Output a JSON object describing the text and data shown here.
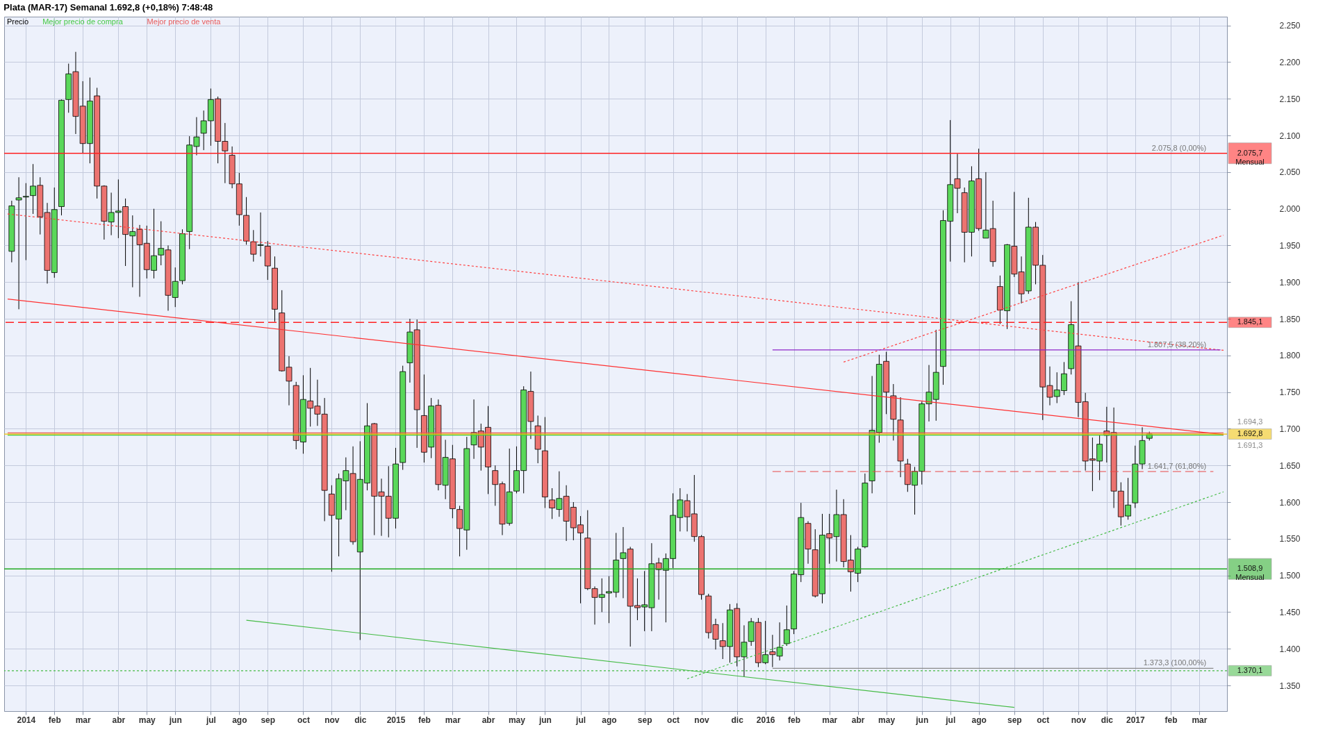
{
  "chart_data": {
    "type": "candlestick",
    "title": "Plata (MAR-17)   Semanal   1.692,8 (+0,18%)   7:48:48",
    "xlim": [
      "2013-12-19",
      "2017-03-30"
    ],
    "ylim": [
      1315,
      2262
    ],
    "xticks": [
      {
        "value": "2014-01-06",
        "label": "2014"
      },
      {
        "value": "2014-02-03",
        "label": "feb"
      },
      {
        "value": "2014-03-03",
        "label": "mar"
      },
      {
        "value": "2014-04-07",
        "label": "abr"
      },
      {
        "value": "2014-05-05",
        "label": "may"
      },
      {
        "value": "2014-06-02",
        "label": "jun"
      },
      {
        "value": "2014-07-07",
        "label": "jul"
      },
      {
        "value": "2014-08-04",
        "label": "ago"
      },
      {
        "value": "2014-09-01",
        "label": "sep"
      },
      {
        "value": "2014-10-06",
        "label": "oct"
      },
      {
        "value": "2014-11-03",
        "label": "nov"
      },
      {
        "value": "2014-12-01",
        "label": "dic"
      },
      {
        "value": "2015-01-05",
        "label": "2015"
      },
      {
        "value": "2015-02-02",
        "label": "feb"
      },
      {
        "value": "2015-03-02",
        "label": "mar"
      },
      {
        "value": "2015-04-06",
        "label": "abr"
      },
      {
        "value": "2015-05-04",
        "label": "may"
      },
      {
        "value": "2015-06-01",
        "label": "jun"
      },
      {
        "value": "2015-07-06",
        "label": "jul"
      },
      {
        "value": "2015-08-03",
        "label": "ago"
      },
      {
        "value": "2015-09-07",
        "label": "sep"
      },
      {
        "value": "2015-10-05",
        "label": "oct"
      },
      {
        "value": "2015-11-02",
        "label": "nov"
      },
      {
        "value": "2015-12-07",
        "label": "dic"
      },
      {
        "value": "2016-01-04",
        "label": "2016"
      },
      {
        "value": "2016-02-01",
        "label": "feb"
      },
      {
        "value": "2016-03-07",
        "label": "mar"
      },
      {
        "value": "2016-04-04",
        "label": "abr"
      },
      {
        "value": "2016-05-02",
        "label": "may"
      },
      {
        "value": "2016-06-06",
        "label": "jun"
      },
      {
        "value": "2016-07-04",
        "label": "jul"
      },
      {
        "value": "2016-08-01",
        "label": "ago"
      },
      {
        "value": "2016-09-05",
        "label": "sep"
      },
      {
        "value": "2016-10-03",
        "label": "oct"
      },
      {
        "value": "2016-11-07",
        "label": "nov"
      },
      {
        "value": "2016-12-05",
        "label": "dic"
      },
      {
        "value": "2017-01-02",
        "label": "2017"
      },
      {
        "value": "2017-02-06",
        "label": "feb"
      },
      {
        "value": "2017-03-06",
        "label": "mar"
      }
    ],
    "yticks": [
      {
        "value": 1350,
        "label": "1.350"
      },
      {
        "value": 1400,
        "label": "1.400"
      },
      {
        "value": 1450,
        "label": "1.450"
      },
      {
        "value": 1500,
        "label": "1.500"
      },
      {
        "value": 1550,
        "label": "1.550"
      },
      {
        "value": 1600,
        "label": "1.600"
      },
      {
        "value": 1650,
        "label": "1.650"
      },
      {
        "value": 1700,
        "label": "1.700"
      },
      {
        "value": 1750,
        "label": "1.750"
      },
      {
        "value": 1800,
        "label": "1.800"
      },
      {
        "value": 1850,
        "label": "1.850"
      },
      {
        "value": 1900,
        "label": "1.900"
      },
      {
        "value": 1950,
        "label": "1.950"
      },
      {
        "value": 2000,
        "label": "2.000"
      },
      {
        "value": 2050,
        "label": "2.050"
      },
      {
        "value": 2100,
        "label": "2.100"
      },
      {
        "value": 2150,
        "label": "2.150"
      },
      {
        "value": 2200,
        "label": "2.200"
      },
      {
        "value": 2250,
        "label": "2.250"
      }
    ],
    "grid": true,
    "legend": "top left",
    "series": [
      {
        "name": "Precio",
        "x": [
          "2013-12-23",
          "2013-12-30",
          "2014-01-06",
          "2014-01-13",
          "2014-01-20",
          "2014-01-27",
          "2014-02-03",
          "2014-02-10",
          "2014-02-17",
          "2014-02-24",
          "2014-03-03",
          "2014-03-10",
          "2014-03-17",
          "2014-03-24",
          "2014-03-31",
          "2014-04-07",
          "2014-04-14",
          "2014-04-21",
          "2014-04-28",
          "2014-05-05",
          "2014-05-12",
          "2014-05-19",
          "2014-05-26",
          "2014-06-02",
          "2014-06-09",
          "2014-06-16",
          "2014-06-23",
          "2014-06-30",
          "2014-07-07",
          "2014-07-14",
          "2014-07-21",
          "2014-07-28",
          "2014-08-04",
          "2014-08-11",
          "2014-08-18",
          "2014-08-25",
          "2014-09-01",
          "2014-09-08",
          "2014-09-15",
          "2014-09-22",
          "2014-09-29",
          "2014-10-06",
          "2014-10-13",
          "2014-10-20",
          "2014-10-27",
          "2014-11-03",
          "2014-11-10",
          "2014-11-17",
          "2014-11-24",
          "2014-12-01",
          "2014-12-08",
          "2014-12-15",
          "2014-12-22",
          "2014-12-29",
          "2015-01-05",
          "2015-01-12",
          "2015-01-19",
          "2015-01-26",
          "2015-02-02",
          "2015-02-09",
          "2015-02-16",
          "2015-02-23",
          "2015-03-02",
          "2015-03-09",
          "2015-03-16",
          "2015-03-23",
          "2015-03-30",
          "2015-04-06",
          "2015-04-13",
          "2015-04-20",
          "2015-04-27",
          "2015-05-04",
          "2015-05-11",
          "2015-05-18",
          "2015-05-25",
          "2015-06-01",
          "2015-06-08",
          "2015-06-15",
          "2015-06-22",
          "2015-06-29",
          "2015-07-06",
          "2015-07-13",
          "2015-07-20",
          "2015-07-27",
          "2015-08-03",
          "2015-08-10",
          "2015-08-17",
          "2015-08-24",
          "2015-08-31",
          "2015-09-07",
          "2015-09-14",
          "2015-09-21",
          "2015-09-28",
          "2015-10-05",
          "2015-10-12",
          "2015-10-19",
          "2015-10-26",
          "2015-11-02",
          "2015-11-09",
          "2015-11-16",
          "2015-11-23",
          "2015-11-30",
          "2015-12-07",
          "2015-12-14",
          "2015-12-21",
          "2015-12-28",
          "2016-01-04",
          "2016-01-11",
          "2016-01-18",
          "2016-01-25",
          "2016-02-01",
          "2016-02-08",
          "2016-02-15",
          "2016-02-22",
          "2016-02-29",
          "2016-03-07",
          "2016-03-14",
          "2016-03-21",
          "2016-03-28",
          "2016-04-04",
          "2016-04-11",
          "2016-04-18",
          "2016-04-25",
          "2016-05-02",
          "2016-05-09",
          "2016-05-16",
          "2016-05-23",
          "2016-05-30",
          "2016-06-06",
          "2016-06-13",
          "2016-06-20",
          "2016-06-27",
          "2016-07-04",
          "2016-07-11",
          "2016-07-18",
          "2016-07-25",
          "2016-08-01",
          "2016-08-08",
          "2016-08-15",
          "2016-08-22",
          "2016-08-29",
          "2016-09-05",
          "2016-09-12",
          "2016-09-19",
          "2016-09-26",
          "2016-10-03",
          "2016-10-10",
          "2016-10-17",
          "2016-10-24",
          "2016-10-31",
          "2016-11-07",
          "2016-11-14",
          "2016-11-21",
          "2016-11-28",
          "2016-12-05",
          "2016-12-12",
          "2016-12-19",
          "2016-12-26",
          "2017-01-02",
          "2017-01-09",
          "2017-01-16"
        ],
        "ohlc": [
          [
            1942,
            2011,
            1927,
            2004
          ],
          [
            2012,
            2043,
            1863,
            2015
          ],
          [
            2016,
            2035,
            1930,
            2017
          ],
          [
            2018,
            2061,
            1993,
            2031
          ],
          [
            2032,
            2043,
            1965,
            1989
          ],
          [
            1995,
            2008,
            1898,
            1916
          ],
          [
            1913,
            2029,
            1906,
            1999
          ],
          [
            2003,
            2149,
            1991,
            2148
          ],
          [
            2149,
            2198,
            2131,
            2184
          ],
          [
            2187,
            2214,
            2102,
            2126
          ],
          [
            2140,
            2174,
            2076,
            2089
          ],
          [
            2089,
            2179,
            2062,
            2147
          ],
          [
            2154,
            2165,
            2014,
            2031
          ],
          [
            2031,
            2032,
            1958,
            1983
          ],
          [
            1982,
            2022,
            1964,
            1995
          ],
          [
            1995,
            2040,
            1960,
            1997
          ],
          [
            2003,
            2014,
            1922,
            1965
          ],
          [
            1963,
            1991,
            1893,
            1969
          ],
          [
            1972,
            1978,
            1880,
            1951
          ],
          [
            1953,
            1977,
            1905,
            1917
          ],
          [
            1916,
            2000,
            1905,
            1936
          ],
          [
            1937,
            1983,
            1923,
            1946
          ],
          [
            1944,
            1950,
            1861,
            1882
          ],
          [
            1879,
            1920,
            1866,
            1901
          ],
          [
            1902,
            1972,
            1897,
            1966
          ],
          [
            1969,
            2099,
            1945,
            2087
          ],
          [
            2085,
            2125,
            2073,
            2098
          ],
          [
            2103,
            2134,
            2080,
            2120
          ],
          [
            2120,
            2164,
            2086,
            2149
          ],
          [
            2150,
            2153,
            2062,
            2092
          ],
          [
            2092,
            2117,
            2035,
            2079
          ],
          [
            2073,
            2085,
            2028,
            2034
          ],
          [
            2034,
            2049,
            1977,
            1992
          ],
          [
            1991,
            2016,
            1951,
            1956
          ],
          [
            1955,
            1971,
            1928,
            1938
          ],
          [
            1950,
            1995,
            1935,
            1951
          ],
          [
            1949,
            1956,
            1903,
            1922
          ],
          [
            1919,
            1935,
            1846,
            1863
          ],
          [
            1858,
            1889,
            1778,
            1779
          ],
          [
            1784,
            1799,
            1732,
            1765
          ],
          [
            1759,
            1764,
            1672,
            1684
          ],
          [
            1682,
            1773,
            1666,
            1740
          ],
          [
            1738,
            1783,
            1703,
            1728
          ],
          [
            1731,
            1767,
            1704,
            1720
          ],
          [
            1720,
            1742,
            1574,
            1616
          ],
          [
            1611,
            1623,
            1505,
            1582
          ],
          [
            1577,
            1639,
            1526,
            1632
          ],
          [
            1629,
            1661,
            1589,
            1643
          ],
          [
            1639,
            1676,
            1542,
            1546
          ],
          [
            1532,
            1683,
            1412,
            1631
          ],
          [
            1626,
            1735,
            1616,
            1704
          ],
          [
            1707,
            1708,
            1555,
            1608
          ],
          [
            1614,
            1632,
            1554,
            1608
          ],
          [
            1608,
            1649,
            1552,
            1578
          ],
          [
            1578,
            1674,
            1564,
            1652
          ],
          [
            1654,
            1786,
            1644,
            1778
          ],
          [
            1790,
            1850,
            1763,
            1832
          ],
          [
            1835,
            1849,
            1674,
            1726
          ],
          [
            1718,
            1774,
            1654,
            1668
          ],
          [
            1675,
            1742,
            1660,
            1731
          ],
          [
            1732,
            1740,
            1616,
            1624
          ],
          [
            1623,
            1685,
            1604,
            1661
          ],
          [
            1659,
            1678,
            1578,
            1591
          ],
          [
            1590,
            1595,
            1526,
            1564
          ],
          [
            1562,
            1689,
            1535,
            1673
          ],
          [
            1678,
            1740,
            1659,
            1695
          ],
          [
            1697,
            1707,
            1643,
            1675
          ],
          [
            1702,
            1731,
            1611,
            1648
          ],
          [
            1643,
            1650,
            1595,
            1624
          ],
          [
            1625,
            1628,
            1555,
            1570
          ],
          [
            1571,
            1673,
            1568,
            1614
          ],
          [
            1615,
            1676,
            1612,
            1643
          ],
          [
            1643,
            1758,
            1612,
            1753
          ],
          [
            1751,
            1778,
            1686,
            1710
          ],
          [
            1704,
            1718,
            1653,
            1672
          ],
          [
            1670,
            1716,
            1592,
            1607
          ],
          [
            1603,
            1619,
            1577,
            1592
          ],
          [
            1590,
            1642,
            1580,
            1605
          ],
          [
            1608,
            1623,
            1547,
            1574
          ],
          [
            1593,
            1600,
            1548,
            1565
          ],
          [
            1569,
            1581,
            1462,
            1558
          ],
          [
            1551,
            1589,
            1480,
            1482
          ],
          [
            1482,
            1485,
            1433,
            1470
          ],
          [
            1470,
            1496,
            1450,
            1474
          ],
          [
            1476,
            1499,
            1435,
            1478
          ],
          [
            1477,
            1558,
            1470,
            1521
          ],
          [
            1523,
            1566,
            1469,
            1531
          ],
          [
            1536,
            1539,
            1403,
            1458
          ],
          [
            1459,
            1496,
            1439,
            1456
          ],
          [
            1457,
            1506,
            1424,
            1460
          ],
          [
            1456,
            1544,
            1424,
            1516
          ],
          [
            1517,
            1524,
            1467,
            1508
          ],
          [
            1507,
            1530,
            1436,
            1523
          ],
          [
            1523,
            1612,
            1510,
            1582
          ],
          [
            1579,
            1619,
            1560,
            1603
          ],
          [
            1602,
            1611,
            1560,
            1580
          ],
          [
            1584,
            1637,
            1546,
            1553
          ],
          [
            1553,
            1555,
            1467,
            1474
          ],
          [
            1472,
            1475,
            1414,
            1422
          ],
          [
            1433,
            1441,
            1399,
            1413
          ],
          [
            1411,
            1435,
            1386,
            1403
          ],
          [
            1403,
            1461,
            1381,
            1453
          ],
          [
            1455,
            1462,
            1376,
            1389
          ],
          [
            1389,
            1432,
            1362,
            1409
          ],
          [
            1410,
            1442,
            1404,
            1437
          ],
          [
            1436,
            1442,
            1375,
            1381
          ],
          [
            1381,
            1438,
            1379,
            1392
          ],
          [
            1396,
            1419,
            1375,
            1392
          ],
          [
            1390,
            1436,
            1384,
            1402
          ],
          [
            1407,
            1459,
            1404,
            1426
          ],
          [
            1427,
            1506,
            1420,
            1502
          ],
          [
            1501,
            1599,
            1491,
            1579
          ],
          [
            1571,
            1574,
            1516,
            1536
          ],
          [
            1535,
            1563,
            1470,
            1472
          ],
          [
            1475,
            1584,
            1462,
            1555
          ],
          [
            1557,
            1584,
            1516,
            1551
          ],
          [
            1553,
            1617,
            1519,
            1583
          ],
          [
            1583,
            1604,
            1511,
            1519
          ],
          [
            1521,
            1555,
            1478,
            1505
          ],
          [
            1503,
            1539,
            1491,
            1536
          ],
          [
            1539,
            1639,
            1537,
            1626
          ],
          [
            1629,
            1772,
            1612,
            1698
          ],
          [
            1695,
            1801,
            1681,
            1788
          ],
          [
            1792,
            1805,
            1720,
            1750
          ],
          [
            1745,
            1761,
            1684,
            1713
          ],
          [
            1712,
            1743,
            1634,
            1656
          ],
          [
            1652,
            1659,
            1614,
            1624
          ],
          [
            1623,
            1648,
            1583,
            1642
          ],
          [
            1642,
            1737,
            1624,
            1734
          ],
          [
            1734,
            1787,
            1710,
            1750
          ],
          [
            1740,
            1835,
            1711,
            1777
          ],
          [
            1785,
            1998,
            1760,
            1984
          ],
          [
            1983,
            2121,
            1928,
            2033
          ],
          [
            2041,
            2075,
            1994,
            2028
          ],
          [
            2022,
            2029,
            1927,
            1968
          ],
          [
            1968,
            2058,
            1935,
            2038
          ],
          [
            2041,
            2082,
            1970,
            1973
          ],
          [
            1960,
            2050,
            1960,
            1971
          ],
          [
            1973,
            2011,
            1921,
            1928
          ],
          [
            1894,
            1909,
            1843,
            1862
          ],
          [
            1861,
            1952,
            1836,
            1951
          ],
          [
            1949,
            2023,
            1907,
            1911
          ],
          [
            1914,
            1935,
            1871,
            1884
          ],
          [
            1888,
            2015,
            1884,
            1975
          ],
          [
            1975,
            1982,
            1897,
            1923
          ],
          [
            1923,
            1937,
            1712,
            1757
          ],
          [
            1759,
            1785,
            1732,
            1743
          ],
          [
            1744,
            1777,
            1735,
            1753
          ],
          [
            1752,
            1791,
            1746,
            1775
          ],
          [
            1782,
            1874,
            1774,
            1842
          ],
          [
            1813,
            1900,
            1716,
            1736
          ],
          [
            1737,
            1749,
            1643,
            1656
          ],
          [
            1659,
            1688,
            1615,
            1657
          ],
          [
            1656,
            1692,
            1630,
            1679
          ],
          [
            1697,
            1730,
            1654,
            1691
          ],
          [
            1695,
            1729,
            1592,
            1615
          ],
          [
            1615,
            1627,
            1568,
            1580
          ],
          [
            1581,
            1633,
            1576,
            1596
          ],
          [
            1599,
            1677,
            1592,
            1652
          ],
          [
            1652,
            1702,
            1645,
            1684
          ],
          [
            1687,
            1696,
            1684,
            1692.8
          ]
        ],
        "colors": [
          "#5ad85a",
          "#5ad85a",
          "#5ad85a",
          "#5ad85a",
          "#ec7370",
          "#ec7370",
          "#5ad85a",
          "#5ad85a",
          "#5ad85a",
          "#ec7370",
          "#ec7370",
          "#5ad85a",
          "#ec7370",
          "#ec7370",
          "#5ad85a",
          "#5ad85a",
          "#ec7370",
          "#5ad85a",
          "#ec7370",
          "#ec7370",
          "#5ad85a",
          "#5ad85a",
          "#ec7370",
          "#5ad85a",
          "#5ad85a",
          "#5ad85a",
          "#5ad85a",
          "#5ad85a",
          "#5ad85a",
          "#ec7370",
          "#ec7370",
          "#ec7370",
          "#ec7370",
          "#ec7370",
          "#ec7370",
          "#5ad85a",
          "#ec7370",
          "#ec7370",
          "#ec7370",
          "#ec7370",
          "#ec7370",
          "#5ad85a",
          "#ec7370",
          "#ec7370",
          "#ec7370",
          "#ec7370",
          "#5ad85a",
          "#5ad85a",
          "#ec7370",
          "#5ad85a",
          "#5ad85a",
          "#ec7370",
          "#ec7370",
          "#ec7370",
          "#5ad85a",
          "#5ad85a",
          "#5ad85a",
          "#ec7370",
          "#ec7370",
          "#5ad85a",
          "#ec7370",
          "#5ad85a",
          "#ec7370",
          "#ec7370",
          "#5ad85a",
          "#5ad85a",
          "#ec7370",
          "#ec7370",
          "#ec7370",
          "#ec7370",
          "#5ad85a",
          "#5ad85a",
          "#5ad85a",
          "#ec7370",
          "#ec7370",
          "#ec7370",
          "#ec7370",
          "#5ad85a",
          "#ec7370",
          "#ec7370",
          "#ec7370",
          "#ec7370",
          "#ec7370",
          "#5ad85a",
          "#5ad85a",
          "#5ad85a",
          "#5ad85a",
          "#ec7370",
          "#ec7370",
          "#5ad85a",
          "#5ad85a",
          "#ec7370",
          "#5ad85a",
          "#5ad85a",
          "#5ad85a",
          "#ec7370",
          "#ec7370",
          "#ec7370",
          "#ec7370",
          "#ec7370",
          "#ec7370",
          "#5ad85a",
          "#ec7370",
          "#5ad85a",
          "#5ad85a",
          "#ec7370",
          "#5ad85a",
          "#ec7370",
          "#5ad85a",
          "#5ad85a",
          "#5ad85a",
          "#5ad85a",
          "#ec7370",
          "#ec7370",
          "#5ad85a",
          "#ec7370",
          "#5ad85a",
          "#ec7370",
          "#ec7370",
          "#5ad85a",
          "#5ad85a",
          "#5ad85a",
          "#5ad85a",
          "#ec7370",
          "#ec7370",
          "#ec7370",
          "#ec7370",
          "#5ad85a",
          "#5ad85a",
          "#5ad85a",
          "#5ad85a",
          "#5ad85a",
          "#5ad85a",
          "#ec7370",
          "#ec7370",
          "#5ad85a",
          "#ec7370",
          "#5ad85a",
          "#ec7370",
          "#ec7370",
          "#5ad85a",
          "#ec7370",
          "#ec7370",
          "#5ad85a",
          "#ec7370",
          "#ec7370",
          "#ec7370",
          "#5ad85a",
          "#5ad85a",
          "#5ad85a",
          "#ec7370",
          "#ec7370",
          "#ec7370",
          "#5ad85a",
          "#ec7370",
          "#ec7370",
          "#ec7370",
          "#5ad85a",
          "#5ad85a",
          "#5ad85a",
          "#5ad85a"
        ]
      },
      {
        "name": "Mejor precio de compra",
        "type": "line",
        "color": "#44c844",
        "x": [
          "2013-12-19",
          "2017-03-30"
        ],
        "values": [
          1691.3,
          1691.3
        ],
        "value_labels": [
          null,
          "1.691,3"
        ]
      },
      {
        "name": "Mejor precio de venta",
        "type": "line",
        "color": "#e85a5a",
        "x": [
          "2013-12-19",
          "2017-03-30"
        ],
        "values": [
          1694.3,
          1694.3
        ],
        "value_labels": [
          null,
          "1.694,3"
        ]
      },
      {
        "type": "line",
        "color": "#ff3030",
        "line_style": "solid",
        "x": [
          "2013-12-19",
          "2017-03-30"
        ],
        "values": [
          1877,
          1692
        ]
      },
      {
        "type": "line",
        "color": "#ff4040",
        "line_style": "dotted",
        "x": [
          "2013-12-19",
          "2017-03-30"
        ],
        "values": [
          1993,
          1807
        ]
      },
      {
        "type": "line",
        "color": "#ff4040",
        "line_style": "dotted",
        "x": [
          "2016-03-21",
          "2017-03-30"
        ],
        "values": [
          1791,
          1964
        ]
      },
      {
        "type": "line",
        "color": "#44bb44",
        "line_style": "solid",
        "x": [
          "2014-08-11",
          "2016-09-05"
        ],
        "values": [
          1439,
          1320
        ]
      },
      {
        "type": "line",
        "color": "#44bb44",
        "line_style": "dotted",
        "x": [
          "2015-10-19",
          "2017-03-30"
        ],
        "values": [
          1359,
          1614
        ]
      },
      {
        "type": "line",
        "color": "#8e24c8",
        "line_style": "solid",
        "x": [
          "2016-01-11",
          "2017-03-27"
        ],
        "values": [
          1807.5,
          1807.5
        ]
      },
      {
        "type": "line",
        "color": "#e84848",
        "line_style": "dashed",
        "x": [
          "2016-01-11",
          "2017-03-20"
        ],
        "values": [
          1641.7,
          1641.7
        ]
      },
      {
        "type": "line",
        "color": "#8a8a8a",
        "line_style": "solid",
        "x": [
          "2016-01-11",
          "2017-03-20"
        ],
        "values": [
          1373.3,
          1373.3
        ]
      }
    ],
    "ref_lines": [
      {
        "axis": "y",
        "value": 2075.7,
        "label": "2.075,7\nMensual",
        "color": "#ff2020",
        "line_style": "solid"
      },
      {
        "axis": "y",
        "value": 1845.1,
        "label": "1.845,1",
        "color": "#ff2020",
        "line_style": "dashed"
      },
      {
        "axis": "y",
        "value": 1692.8,
        "label": "1.692,8",
        "color": "#f0c000",
        "line_style": "solid"
      },
      {
        "axis": "y",
        "value": 1508.9,
        "label": "1.508,9\nMensual",
        "color": "#22aa22",
        "line_style": "solid"
      },
      {
        "axis": "y",
        "value": 1370.1,
        "label": "1.370,1",
        "color": "#44bb44",
        "line_style": "dotted"
      }
    ],
    "annotations": [
      {
        "text": "2.075,8 (0,00%)",
        "x": "2017-03-13",
        "y": 2075.8
      },
      {
        "text": "1.807,5 (38,20%)",
        "x": "2017-03-13",
        "y": 1807.5
      },
      {
        "text": "1.641,7 (61,80%)",
        "x": "2017-03-13",
        "y": 1641.7
      },
      {
        "text": "1.373,3 (100,00%)",
        "x": "2017-03-13",
        "y": 1373.3
      }
    ]
  }
}
